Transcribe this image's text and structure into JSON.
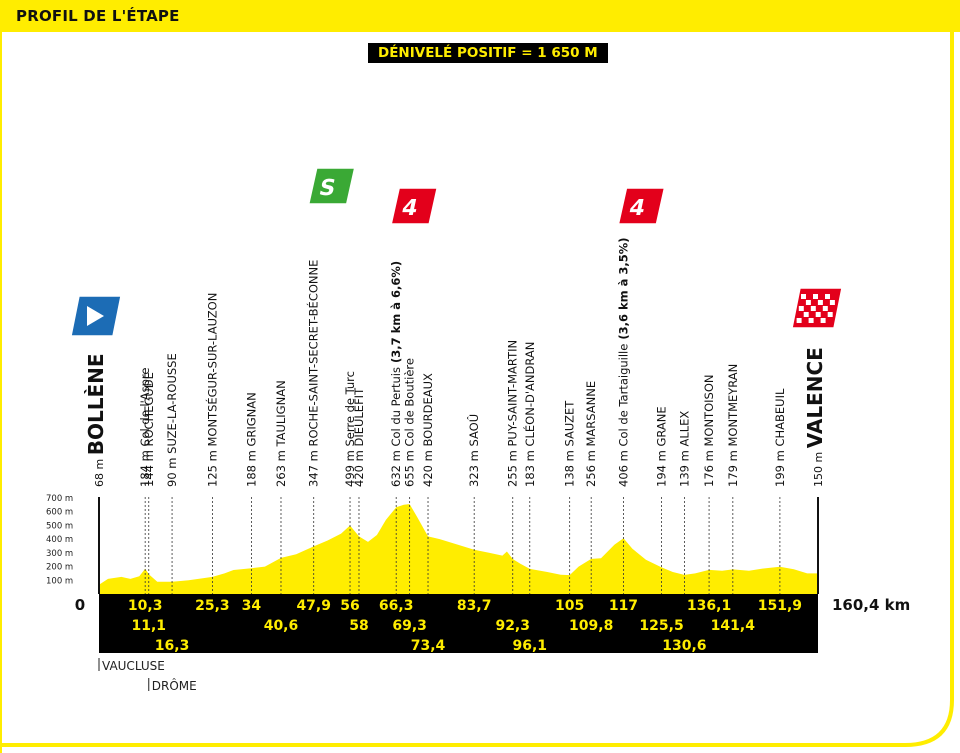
{
  "header": {
    "title": "PROFIL DE L'ÉTAPE"
  },
  "gain_label": "DÉNIVELÉ POSITIF = 1 650 M",
  "colors": {
    "accent": "#ffed00",
    "profile": "#ffed00",
    "sprint": "#3aa935",
    "climb": "#e3001b",
    "start": "#1c6cb5",
    "dark": "#000000"
  },
  "chart_data": {
    "type": "area",
    "title": "PROFIL DE L'ÉTAPE",
    "xlabel": "km",
    "ylabel": "m",
    "xlim": [
      0,
      160.4
    ],
    "ylim": [
      0,
      700
    ],
    "y_ticks": [
      "100 m",
      "200 m",
      "300 m",
      "400 m",
      "500 m",
      "600 m",
      "700 m"
    ],
    "y_tick_values": [
      100,
      200,
      300,
      400,
      500,
      600,
      700
    ],
    "start_km": "0",
    "end_km": "160,4 km",
    "profile": [
      [
        0,
        68
      ],
      [
        2,
        110
      ],
      [
        5,
        125
      ],
      [
        7,
        110
      ],
      [
        9,
        130
      ],
      [
        10.3,
        184
      ],
      [
        11.1,
        144
      ],
      [
        13,
        90
      ],
      [
        16.3,
        90
      ],
      [
        20,
        100
      ],
      [
        25.3,
        125
      ],
      [
        28,
        150
      ],
      [
        30,
        175
      ],
      [
        34,
        188
      ],
      [
        37,
        200
      ],
      [
        40.6,
        263
      ],
      [
        44,
        290
      ],
      [
        47.9,
        347
      ],
      [
        51,
        390
      ],
      [
        54,
        440
      ],
      [
        56,
        499
      ],
      [
        58,
        420
      ],
      [
        60,
        380
      ],
      [
        62,
        430
      ],
      [
        64,
        540
      ],
      [
        66.3,
        632
      ],
      [
        68,
        650
      ],
      [
        69.3,
        655
      ],
      [
        71,
        560
      ],
      [
        73.4,
        420
      ],
      [
        76,
        400
      ],
      [
        80,
        360
      ],
      [
        83.7,
        323
      ],
      [
        87,
        300
      ],
      [
        90,
        280
      ],
      [
        91,
        310
      ],
      [
        92.3,
        255
      ],
      [
        94,
        220
      ],
      [
        96.1,
        183
      ],
      [
        100,
        160
      ],
      [
        103,
        140
      ],
      [
        105,
        138
      ],
      [
        107,
        200
      ],
      [
        109.8,
        256
      ],
      [
        112,
        260
      ],
      [
        115,
        360
      ],
      [
        117,
        406
      ],
      [
        119,
        330
      ],
      [
        122,
        250
      ],
      [
        125.5,
        194
      ],
      [
        128,
        160
      ],
      [
        130.6,
        139
      ],
      [
        133,
        150
      ],
      [
        136.1,
        176
      ],
      [
        139,
        170
      ],
      [
        141.4,
        179
      ],
      [
        145,
        170
      ],
      [
        148,
        185
      ],
      [
        151.9,
        199
      ],
      [
        155,
        180
      ],
      [
        158,
        150
      ],
      [
        160.4,
        150
      ]
    ],
    "waypoints": [
      {
        "km": 0,
        "label": "68 m",
        "place": "BOLLÈNE",
        "bold": true,
        "depart": true
      },
      {
        "km": 10.3,
        "label": "184 m",
        "place": "Col de l'Aspre"
      },
      {
        "km": 11.1,
        "label": "144 m",
        "place": "ROCHEGUDE"
      },
      {
        "km": 16.3,
        "label": "90 m",
        "place": "SUZE-LA-ROUSSE"
      },
      {
        "km": 25.3,
        "label": "125 m",
        "place": "MONTSÉGUR-SUR-LAUZON"
      },
      {
        "km": 34,
        "label": "188 m",
        "place": "GRIGNAN"
      },
      {
        "km": 40.6,
        "label": "263 m",
        "place": "TAULIGNAN"
      },
      {
        "km": 47.9,
        "label": "347 m",
        "place": "ROCHE-SAINT-SECRET-BÉCONNE",
        "sprint": true
      },
      {
        "km": 56,
        "label": "499 m",
        "place": "Serre de Turc"
      },
      {
        "km": 58,
        "label": "420 m",
        "place": "DIEULEFIT"
      },
      {
        "km": 66.3,
        "label": "632 m",
        "place": "Col du Pertuis",
        "detail": "(3,7 km à 6,6%)",
        "climb": "4"
      },
      {
        "km": 69.3,
        "label": "655 m",
        "place": "Col de Boutière"
      },
      {
        "km": 73.4,
        "label": "420 m",
        "place": "BOURDEAUX"
      },
      {
        "km": 83.7,
        "label": "323 m",
        "place": "SAOÛ"
      },
      {
        "km": 92.3,
        "label": "255 m",
        "place": "PUY-SAINT-MARTIN"
      },
      {
        "km": 96.1,
        "label": "183 m",
        "place": "CLÉON-D'ANDRAN"
      },
      {
        "km": 105,
        "label": "138 m",
        "place": "SAUZET"
      },
      {
        "km": 109.8,
        "label": "256 m",
        "place": "MARSANNE"
      },
      {
        "km": 117,
        "label": "406 m",
        "place": "Col de Tartaiguille",
        "detail": "(3,6 km à 3,5%)",
        "climb": "4"
      },
      {
        "km": 125.5,
        "label": "194 m",
        "place": "GRANE"
      },
      {
        "km": 130.6,
        "label": "139 m",
        "place": "ALLEX"
      },
      {
        "km": 136.1,
        "label": "176 m",
        "place": "MONTOISON"
      },
      {
        "km": 141.4,
        "label": "179 m",
        "place": "MONTMEYRAN"
      },
      {
        "km": 151.9,
        "label": "199 m",
        "place": "CHABEUIL"
      },
      {
        "km": 160.4,
        "label": "150 m",
        "place": "VALENCE",
        "bold": true,
        "finish": true
      }
    ],
    "km_labels": [
      {
        "km": 10.3,
        "text": "10,3",
        "row": 0
      },
      {
        "km": 11.1,
        "text": "11,1",
        "row": 1
      },
      {
        "km": 16.3,
        "text": "16,3",
        "row": 2
      },
      {
        "km": 25.3,
        "text": "25,3",
        "row": 0
      },
      {
        "km": 34,
        "text": "34",
        "row": 0
      },
      {
        "km": 40.6,
        "text": "40,6",
        "row": 1
      },
      {
        "km": 47.9,
        "text": "47,9",
        "row": 0
      },
      {
        "km": 56,
        "text": "56",
        "row": 0
      },
      {
        "km": 58,
        "text": "58",
        "row": 1
      },
      {
        "km": 66.3,
        "text": "66,3",
        "row": 0
      },
      {
        "km": 69.3,
        "text": "69,3",
        "row": 1
      },
      {
        "km": 73.4,
        "text": "73,4",
        "row": 2
      },
      {
        "km": 83.7,
        "text": "83,7",
        "row": 0
      },
      {
        "km": 92.3,
        "text": "92,3",
        "row": 1
      },
      {
        "km": 96.1,
        "text": "96,1",
        "row": 2
      },
      {
        "km": 105,
        "text": "105",
        "row": 0
      },
      {
        "km": 109.8,
        "text": "109,8",
        "row": 1
      },
      {
        "km": 117,
        "text": "117",
        "row": 0
      },
      {
        "km": 125.5,
        "text": "125,5",
        "row": 1
      },
      {
        "km": 130.6,
        "text": "130,6",
        "row": 2
      },
      {
        "km": 136.1,
        "text": "136,1",
        "row": 0
      },
      {
        "km": 141.4,
        "text": "141,4",
        "row": 1
      },
      {
        "km": 151.9,
        "text": "151,9",
        "row": 0
      }
    ],
    "climb_badges": [
      {
        "km": 47.9,
        "text": "S",
        "kind": "sprint"
      },
      {
        "km": 66.3,
        "text": "4",
        "kind": "climb"
      },
      {
        "km": 117,
        "text": "4",
        "kind": "climb"
      }
    ]
  },
  "regions": [
    {
      "km": 0,
      "text": "VAUCLUSE",
      "row": 0
    },
    {
      "km": 11.1,
      "text": "DRÔME",
      "row": 1
    }
  ]
}
